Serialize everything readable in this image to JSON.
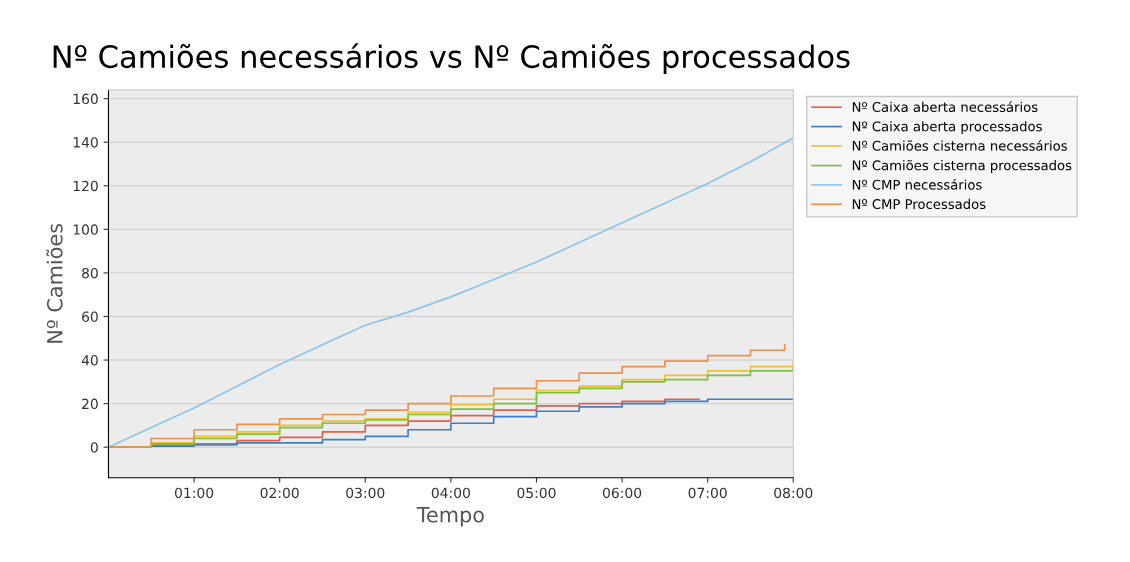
{
  "chart_data": {
    "type": "step",
    "title": "Nº Camiões necessários vs Nº Camiões processados",
    "xlabel": "Tempo",
    "ylabel": "Nº Camiões",
    "x": [
      0,
      0.5,
      1,
      1.5,
      2,
      2.5,
      3,
      3.5,
      4,
      4.5,
      5,
      5.5,
      6,
      6.5,
      7,
      7.5,
      8
    ],
    "series": [
      {
        "name": "Nº Caixa aberta necessários",
        "color": "#e0604a",
        "x": [
          0,
          0.5,
          1,
          1.5,
          2,
          2.5,
          3,
          3.5,
          4,
          4.5,
          5,
          5.5,
          6,
          6.5,
          6.9
        ],
        "values": [
          0,
          1,
          1.5,
          3,
          4.5,
          7,
          10,
          12,
          14.5,
          17,
          19,
          20,
          21,
          22,
          22
        ]
      },
      {
        "name": "Nº Caixa aberta processados",
        "color": "#3c7fc7",
        "values": [
          0,
          0.5,
          1,
          2,
          2,
          3.5,
          5,
          8,
          11,
          14,
          16.5,
          18.5,
          20,
          21,
          22,
          22,
          22
        ]
      },
      {
        "name": "Nº Camiões cisterna necessários",
        "color": "#f0c030",
        "values": [
          0,
          2,
          5,
          7,
          10,
          12,
          13,
          16,
          19.5,
          22,
          26,
          28,
          31,
          33,
          35,
          37,
          39
        ]
      },
      {
        "name": "Nº Camiões cisterna processados",
        "color": "#7cc040",
        "values": [
          0,
          1.5,
          4,
          6,
          9,
          11,
          12.5,
          15,
          17.5,
          20,
          25,
          27,
          30,
          31,
          33,
          35,
          36.5
        ]
      },
      {
        "name": "Nº CMP necessários",
        "color": "#8cc4ea",
        "type": "line",
        "values": [
          0,
          9,
          18,
          28,
          38,
          47,
          56,
          62,
          69,
          77,
          85,
          94,
          103,
          112,
          121,
          131,
          142
        ]
      },
      {
        "name": "Nº CMP Processados",
        "color": "#f0904a",
        "x": [
          0,
          0.5,
          1,
          1.5,
          2,
          2.5,
          3,
          3.5,
          4,
          4.5,
          5,
          5.5,
          6,
          6.5,
          7,
          7.5,
          7.9
        ],
        "values": [
          0,
          4,
          8,
          10.5,
          13,
          15,
          17,
          20,
          23.5,
          27,
          30.5,
          34,
          37,
          39.5,
          42,
          44.5,
          47
        ]
      }
    ],
    "xlim": [
      0,
      8
    ],
    "xticks": [
      {
        "value": 1,
        "label": "01:00"
      },
      {
        "value": 2,
        "label": "02:00"
      },
      {
        "value": 3,
        "label": "03:00"
      },
      {
        "value": 4,
        "label": "04:00"
      },
      {
        "value": 5,
        "label": "05:00"
      },
      {
        "value": 6,
        "label": "06:00"
      },
      {
        "value": 7,
        "label": "07:00"
      },
      {
        "value": 8,
        "label": "08:00"
      }
    ],
    "ylim": [
      -14,
      164
    ],
    "yticks": [
      0,
      20,
      40,
      60,
      80,
      100,
      120,
      140,
      160
    ],
    "grid": "y",
    "legend": "top right"
  }
}
